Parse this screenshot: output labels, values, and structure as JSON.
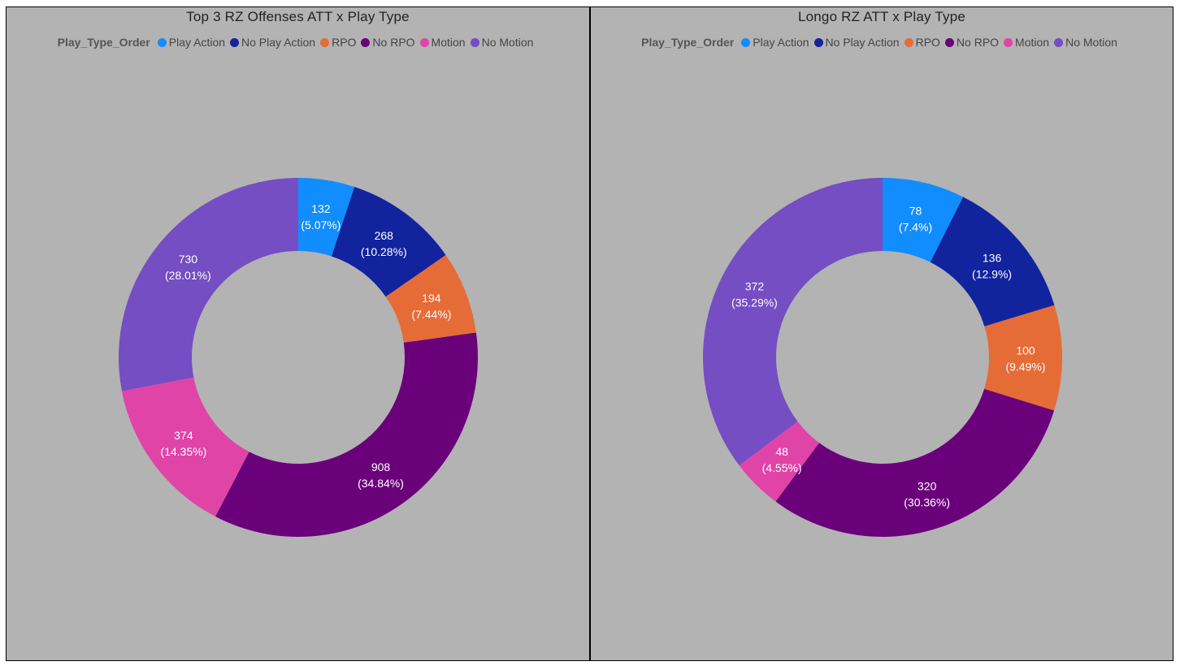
{
  "legend_title": "Play_Type_Order",
  "colors": {
    "Play Action": "#118dff",
    "No Play Action": "#12239e",
    "RPO": "#e66c37",
    "No RPO": "#6b007b",
    "Motion": "#e044a7",
    "No Motion": "#744ec2"
  },
  "chart_data": [
    {
      "type": "pie",
      "title": "Top 3 RZ Offenses ATT x Play Type",
      "legend_title": "Play_Type_Order",
      "categories": [
        "Play Action",
        "No Play Action",
        "RPO",
        "No RPO",
        "Motion",
        "No Motion"
      ],
      "values": [
        132,
        268,
        194,
        908,
        374,
        730
      ],
      "percent_labels": [
        "(5.07%)",
        "(10.28%)",
        "(7.44%)",
        "(34.84%)",
        "(14.35%)",
        "(28.01%)"
      ],
      "value_labels": [
        "132",
        "268",
        "194",
        "908",
        "374",
        "730"
      ]
    },
    {
      "type": "pie",
      "title": "Longo RZ ATT x Play Type",
      "legend_title": "Play_Type_Order",
      "categories": [
        "Play Action",
        "No Play Action",
        "RPO",
        "No RPO",
        "Motion",
        "No Motion"
      ],
      "values": [
        78,
        136,
        100,
        320,
        48,
        372
      ],
      "percent_labels": [
        "(7.4%)",
        "(12.9%)",
        "(9.49%)",
        "(30.36%)",
        "(4.55%)",
        "(35.29%)"
      ],
      "value_labels": [
        "78",
        "136",
        "100",
        "320",
        "48",
        "372"
      ]
    }
  ]
}
